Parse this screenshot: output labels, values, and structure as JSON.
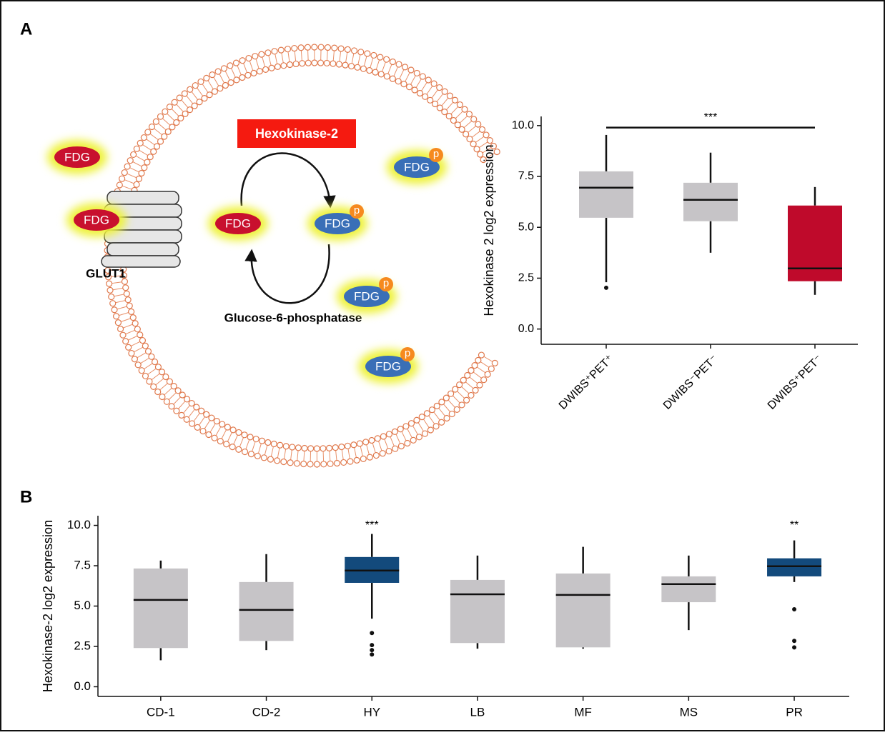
{
  "panel_labels": [
    "A",
    "B"
  ],
  "diagram": {
    "enzyme_forward": "Hexokinase-2",
    "enzyme_reverse": "Glucose-6-phosphatase",
    "transporter": "GLUT1",
    "molecules": [
      {
        "label": "FDG"
      },
      {
        "label": "FDG"
      },
      {
        "label": "FDG"
      },
      {
        "label": "FDG",
        "phosphate": "p"
      },
      {
        "label": "FDG",
        "phosphate": "p"
      },
      {
        "label": "FDG",
        "phosphate": "p"
      },
      {
        "label": "FDG",
        "phosphate": "p"
      }
    ]
  },
  "chart_data": [
    {
      "type": "box",
      "y_label": "Hexokinase 2 log2 expression",
      "categories": [
        "DWIBS⁺PET⁺",
        "DWIBS⁻PET⁻",
        "DWIBS⁺PET⁻"
      ],
      "colors": [
        "#c6c4c7",
        "#c6c4c7",
        "#bf0a2b"
      ],
      "boxes": [
        {
          "min": 2.3,
          "q1": 5.47,
          "median": 6.95,
          "q3": 7.75,
          "max": 9.54,
          "outliers": [
            2.03
          ]
        },
        {
          "min": 3.75,
          "q1": 5.3,
          "median": 6.35,
          "q3": 7.19,
          "max": 8.67,
          "outliers": []
        },
        {
          "min": 1.68,
          "q1": 2.35,
          "median": 2.98,
          "q3": 6.07,
          "max": 6.98,
          "outliers": []
        }
      ],
      "ylim": [
        -0.75,
        10.45
      ],
      "yticks": [
        {
          "value": 0,
          "label": "0.0"
        },
        2.5,
        {
          "value": 5,
          "label": "5.0"
        },
        7.5,
        {
          "value": 10,
          "label": "10.0"
        }
      ],
      "annotations": [
        {
          "from": "DWIBS⁺PET⁺",
          "to": "DWIBS⁺PET⁻",
          "text": "***",
          "y": 9.9
        }
      ]
    },
    {
      "type": "box",
      "y_label": "Hexokinase-2 log2 expression",
      "categories": [
        "CD-1",
        "CD-2",
        "HY",
        "LB",
        "MF",
        "MS",
        "PR"
      ],
      "colors": [
        "#c6c4c7",
        "#c6c4c7",
        "#134a7c",
        "#c6c4c7",
        "#c6c4c7",
        "#c6c4c7",
        "#134a7c"
      ],
      "boxes": [
        {
          "min": 1.64,
          "q1": 2.4,
          "median": 5.38,
          "q3": 7.33,
          "max": 7.82,
          "outliers": []
        },
        {
          "min": 2.27,
          "q1": 2.84,
          "median": 4.76,
          "q3": 6.49,
          "max": 8.22,
          "outliers": []
        },
        {
          "min": 4.22,
          "q1": 6.44,
          "median": 7.2,
          "q3": 8.04,
          "max": 9.47,
          "outliers": [
            3.33,
            2.58,
            2.27,
            2.0
          ]
        },
        {
          "min": 2.36,
          "q1": 2.71,
          "median": 5.73,
          "q3": 6.62,
          "max": 8.13,
          "outliers": []
        },
        {
          "min": 2.36,
          "q1": 2.44,
          "median": 5.69,
          "q3": 7.02,
          "max": 8.67,
          "outliers": []
        },
        {
          "min": 3.51,
          "q1": 5.24,
          "median": 6.36,
          "q3": 6.84,
          "max": 8.13,
          "outliers": []
        },
        {
          "min": 6.49,
          "q1": 6.84,
          "median": 7.47,
          "q3": 7.96,
          "max": 9.07,
          "outliers": [
            4.8,
            2.84,
            2.44
          ]
        }
      ],
      "ylim": [
        -0.6,
        10.6
      ],
      "yticks": [
        {
          "value": 0,
          "label": "0.0"
        },
        2.5,
        {
          "value": 5,
          "label": "5.0"
        },
        7.5,
        {
          "value": 10,
          "label": "10.0"
        }
      ],
      "annotations": [
        {
          "category": "HY",
          "text": "***"
        },
        {
          "category": "PR",
          "text": "**"
        }
      ]
    }
  ]
}
